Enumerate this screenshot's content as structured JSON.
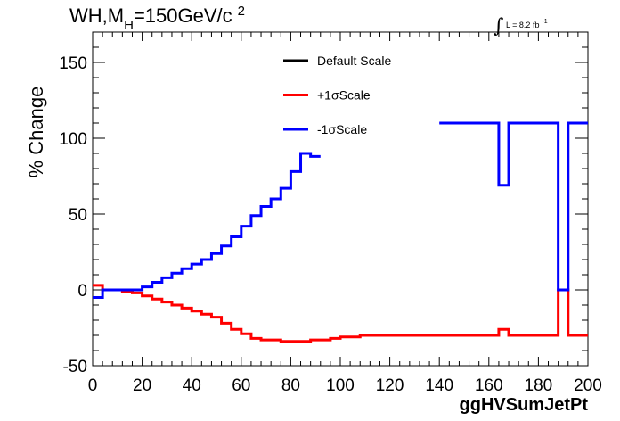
{
  "chart_data": {
    "type": "line",
    "title_main": "WH,M",
    "title_sub": "H",
    "title_rest": "=150GeV/c",
    "title_sup": "2",
    "lumi_prefix": "L = 8.2 fb",
    "lumi_sup": "-1",
    "xlabel": "ggHVSumJetPt",
    "ylabel": "% Change",
    "xlim": [
      0,
      200
    ],
    "ylim": [
      -50,
      170
    ],
    "x_ticks": [
      0,
      20,
      40,
      60,
      80,
      100,
      120,
      140,
      160,
      180,
      200
    ],
    "y_ticks": [
      -50,
      0,
      50,
      100,
      150
    ],
    "legend_position": "top-center",
    "bin_edges": [
      0,
      4,
      8,
      12,
      16,
      20,
      24,
      28,
      32,
      36,
      40,
      44,
      48,
      52,
      56,
      60,
      64,
      68,
      72,
      76,
      80,
      84,
      88,
      92,
      96,
      100,
      104,
      108,
      112,
      116,
      120,
      124,
      128,
      132,
      136,
      140,
      144,
      148,
      152,
      156,
      160,
      164,
      168,
      172,
      176,
      180,
      184,
      188,
      192,
      196,
      200
    ],
    "series": [
      {
        "name": "Default Scale",
        "color": "#000000",
        "values": [
          null,
          null,
          null,
          null,
          null,
          null,
          null,
          null,
          null,
          null,
          null,
          null,
          null,
          null,
          null,
          null,
          null,
          null,
          null,
          null,
          null,
          null,
          null,
          null,
          null,
          null,
          null,
          null,
          null,
          null,
          null,
          null,
          null,
          null,
          null,
          null,
          null,
          null,
          null,
          null,
          null,
          null,
          null,
          null,
          null,
          null,
          null,
          null,
          null,
          null
        ]
      },
      {
        "name": "+1σScale",
        "color": "#ff0000",
        "values": [
          3,
          0,
          0,
          -1,
          -2,
          -4,
          -6,
          -8,
          -10,
          -12,
          -14,
          -16,
          -18,
          -22,
          -26,
          -29,
          -32,
          -33,
          -33,
          -34,
          -34,
          -34,
          -33,
          -33,
          -32,
          -31,
          -31,
          -30,
          -30,
          -30,
          -30,
          -30,
          -30,
          -30,
          -30,
          -30,
          -30,
          -30,
          -30,
          -30,
          -30,
          -26,
          -30,
          -30,
          -30,
          -30,
          -30,
          0,
          -30,
          -30
        ]
      },
      {
        "name": "-1σScale",
        "color": "#0000ff",
        "values": [
          -5,
          0,
          0,
          0,
          0,
          2,
          5,
          8,
          11,
          14,
          17,
          20,
          24,
          29,
          35,
          42,
          49,
          55,
          60,
          67,
          78,
          90,
          88,
          null,
          null,
          null,
          null,
          null,
          null,
          null,
          null,
          null,
          null,
          null,
          null,
          110,
          110,
          110,
          110,
          110,
          110,
          69,
          110,
          110,
          110,
          110,
          110,
          0,
          110,
          110
        ]
      }
    ]
  }
}
